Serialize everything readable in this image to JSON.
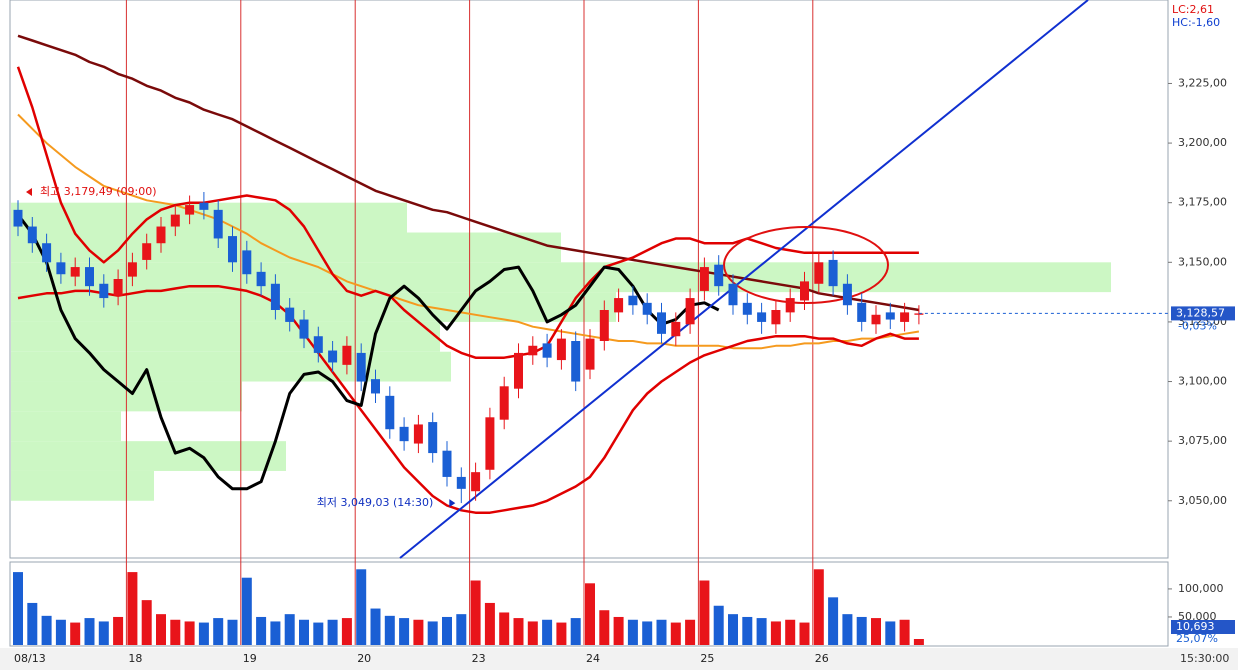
{
  "chart_data": {
    "type": "candlestick",
    "lc_label": "LC:2,61",
    "hc_label": "HC:-1,60",
    "time_label": "15:30:00",
    "categories": [
      "08/13",
      null,
      null,
      null,
      null,
      null,
      null,
      null,
      "18",
      null,
      null,
      null,
      null,
      null,
      null,
      null,
      "19",
      null,
      null,
      null,
      null,
      null,
      null,
      null,
      "20",
      null,
      null,
      null,
      null,
      null,
      null,
      null,
      "23",
      null,
      null,
      null,
      null,
      null,
      null,
      null,
      "24",
      null,
      null,
      null,
      null,
      null,
      null,
      null,
      "25",
      null,
      null,
      null,
      null,
      null,
      null,
      null,
      "26",
      null,
      null,
      null,
      null,
      null,
      null,
      null
    ],
    "open": [
      3172,
      3165,
      3158,
      3150,
      3144,
      3148,
      3141,
      3136,
      3144,
      3151,
      3158,
      3165,
      3170,
      3175,
      3172,
      3161,
      3155,
      3146,
      3141,
      3131,
      3126,
      3119,
      3113,
      3107,
      3112,
      3101,
      3094,
      3081,
      3074,
      3083,
      3071,
      3060,
      3054,
      3063,
      3084,
      3097,
      3111,
      3116,
      3109,
      3117,
      3105,
      3117,
      3129,
      3136,
      3133,
      3129,
      3119,
      3124,
      3138,
      3149,
      3141,
      3133,
      3129,
      3124,
      3129,
      3134,
      3141,
      3151,
      3141,
      3133,
      3124,
      3129,
      3125,
      3128
    ],
    "high": [
      3176,
      3169,
      3162,
      3154,
      3152,
      3152,
      3145,
      3147,
      3154,
      3162,
      3169,
      3174,
      3178,
      3179.49,
      3176,
      3165,
      3159,
      3150,
      3145,
      3135,
      3130,
      3123,
      3117,
      3119,
      3116,
      3105,
      3098,
      3085,
      3086,
      3087,
      3075,
      3064,
      3066,
      3089,
      3102,
      3116,
      3119,
      3120,
      3122,
      3121,
      3122,
      3134,
      3139,
      3140,
      3137,
      3133,
      3129,
      3139,
      3152,
      3153,
      3145,
      3137,
      3133,
      3134,
      3139,
      3146,
      3154,
      3155,
      3145,
      3137,
      3132,
      3133,
      3133,
      3132
    ],
    "low": [
      3161,
      3154,
      3146,
      3141,
      3140,
      3136,
      3131,
      3132,
      3140,
      3147,
      3154,
      3161,
      3166,
      3168,
      3156,
      3146,
      3141,
      3136,
      3126,
      3121,
      3114,
      3108,
      3104,
      3103,
      3096,
      3091,
      3076,
      3071,
      3070,
      3066,
      3056,
      3049.03,
      3050,
      3059,
      3080,
      3093,
      3107,
      3106,
      3105,
      3096,
      3101,
      3113,
      3125,
      3128,
      3124,
      3116,
      3115,
      3120,
      3134,
      3136,
      3128,
      3124,
      3120,
      3120,
      3125,
      3130,
      3137,
      3136,
      3128,
      3121,
      3120,
      3122,
      3121,
      3124
    ],
    "close": [
      3165,
      3158,
      3150,
      3145,
      3148,
      3140,
      3135,
      3143,
      3150,
      3158,
      3165,
      3170,
      3174,
      3172,
      3160,
      3150,
      3145,
      3140,
      3130,
      3125,
      3118,
      3112,
      3108,
      3115,
      3100,
      3095,
      3080,
      3075,
      3082,
      3070,
      3060,
      3055,
      3062,
      3085,
      3098,
      3112,
      3115,
      3110,
      3118,
      3100,
      3118,
      3130,
      3135,
      3132,
      3128,
      3120,
      3125,
      3135,
      3148,
      3140,
      3132,
      3128,
      3125,
      3130,
      3135,
      3142,
      3150,
      3140,
      3132,
      3125,
      3128,
      3126,
      3129,
      3128.57
    ],
    "up_color": "#e8141a",
    "down_color": "#1a5fd4",
    "ylim": [
      3026,
      3260
    ],
    "yticks": [
      {
        "value": 3050,
        "label": "3,050,00"
      },
      {
        "value": 3075,
        "label": "3,075,00"
      },
      {
        "value": 3100,
        "label": "3,100,00"
      },
      {
        "value": 3125,
        "label": "3,125,00"
      },
      {
        "value": 3150,
        "label": "3,150,00"
      },
      {
        "value": 3175,
        "label": "3,175,00"
      },
      {
        "value": 3200,
        "label": "3,200,00"
      },
      {
        "value": 3225,
        "label": "3,225,00"
      }
    ],
    "last_price": {
      "value": 3128.57,
      "label": "3,128,57"
    },
    "change_label": "-0,03%",
    "annotations": [
      {
        "text": "최고 3,179,49 (09:00)",
        "color": "#e01010"
      },
      {
        "text": "최저 3,049,03 (14:30)",
        "color": "#1030c0"
      }
    ],
    "series": [
      {
        "color": "#7a0a0a",
        "width": 2.5,
        "values": [
          3245,
          3243,
          3241,
          3239,
          3237,
          3234,
          3232,
          3229,
          3227,
          3224,
          3222,
          3219,
          3217,
          3214,
          3212,
          3210,
          3207,
          3204,
          3201,
          3198,
          3195,
          3192,
          3189,
          3186,
          3183,
          3180,
          3178,
          3176,
          3174,
          3172,
          3171,
          3169,
          3167,
          3165,
          3163,
          3161,
          3159,
          3157,
          3156,
          3155,
          3154,
          3153,
          3152,
          3151,
          3150,
          3149,
          3148,
          3147,
          3146,
          3145,
          3144,
          3143,
          3142,
          3141,
          3140,
          3139,
          3137,
          3136,
          3135,
          3134,
          3133,
          3132,
          3131,
          3130
        ]
      },
      {
        "color": "#f59a1e",
        "width": 2,
        "values": [
          3212,
          3206,
          3200,
          3195,
          3190,
          3186,
          3182,
          3180,
          3178,
          3176,
          3175,
          3174,
          3172,
          3170,
          3168,
          3165,
          3162,
          3158,
          3155,
          3152,
          3150,
          3148,
          3145,
          3142,
          3140,
          3138,
          3136,
          3134,
          3132,
          3131,
          3130,
          3129,
          3128,
          3127,
          3126,
          3125,
          3123,
          3122,
          3121,
          3120,
          3119,
          3118,
          3117,
          3117,
          3116,
          3116,
          3115,
          3115,
          3115,
          3115,
          3114,
          3114,
          3114,
          3115,
          3115,
          3116,
          3116,
          3117,
          3117,
          3118,
          3118,
          3119,
          3120,
          3121
        ]
      },
      {
        "color": "#e00000",
        "width": 2.5,
        "values": [
          3232,
          3215,
          3195,
          3175,
          3162,
          3155,
          3150,
          3155,
          3162,
          3168,
          3172,
          3174,
          3175,
          3175,
          3176,
          3177,
          3178,
          3177,
          3176,
          3172,
          3165,
          3155,
          3145,
          3138,
          3136,
          3138,
          3136,
          3130,
          3125,
          3120,
          3115,
          3112,
          3110,
          3110,
          3110,
          3111,
          3112,
          3115,
          3125,
          3135,
          3142,
          3148,
          3150,
          3152,
          3155,
          3158,
          3160,
          3160,
          3158,
          3158,
          3158,
          3160,
          3158,
          3156,
          3155,
          3154,
          3154,
          3154,
          3154,
          3154,
          3154,
          3154,
          3154,
          3154
        ]
      },
      {
        "color": "#e00000",
        "width": 2.5,
        "values": [
          3135,
          3136,
          3137,
          3137,
          3138,
          3138,
          3137,
          3136,
          3137,
          3138,
          3138,
          3139,
          3140,
          3140,
          3140,
          3139,
          3138,
          3136,
          3133,
          3128,
          3120,
          3112,
          3104,
          3096,
          3088,
          3080,
          3072,
          3064,
          3058,
          3052,
          3048,
          3046,
          3045,
          3045,
          3046,
          3047,
          3048,
          3050,
          3053,
          3056,
          3060,
          3068,
          3078,
          3088,
          3095,
          3100,
          3104,
          3108,
          3111,
          3113,
          3115,
          3117,
          3118,
          3119,
          3119,
          3119,
          3118,
          3118,
          3116,
          3115,
          3118,
          3120,
          3118,
          3118
        ]
      },
      {
        "color": "#000000",
        "width": 3,
        "values": [
          3170,
          3162,
          3150,
          3130,
          3118,
          3112,
          3105,
          3100,
          3095,
          3105,
          3085,
          3070,
          3072,
          3068,
          3060,
          3055,
          3055,
          3058,
          3075,
          3095,
          3103,
          3104,
          3100,
          3092,
          3090,
          3120,
          3135,
          3140,
          3135,
          3128,
          3122,
          3130,
          3138,
          3142,
          3147,
          3148,
          3138,
          3125,
          3128,
          3132,
          3140,
          3148,
          3147,
          3140,
          3130,
          3124,
          3126,
          3132,
          3133,
          3130,
          null,
          null,
          null,
          null,
          null,
          null,
          null,
          null,
          null,
          null,
          null,
          null,
          null,
          null
        ]
      }
    ],
    "volume_profile": {
      "color": "#ccf7c4",
      "bins": [
        3050,
        3062.5,
        3075,
        3087.5,
        3100,
        3112.5,
        3125,
        3137.5,
        3150,
        3162.5,
        3175
      ],
      "values": [
        13,
        25,
        10,
        21,
        40,
        39,
        55,
        100,
        50,
        36
      ]
    },
    "volume": {
      "values": [
        130000,
        75000,
        52000,
        45000,
        40000,
        48000,
        42000,
        50000,
        130000,
        80000,
        55000,
        45000,
        42000,
        40000,
        48000,
        45000,
        120000,
        50000,
        42000,
        55000,
        45000,
        40000,
        45000,
        48000,
        135000,
        65000,
        52000,
        48000,
        45000,
        42000,
        50000,
        55000,
        115000,
        75000,
        58000,
        48000,
        42000,
        45000,
        40000,
        48000,
        110000,
        62000,
        50000,
        45000,
        42000,
        45000,
        40000,
        45000,
        115000,
        70000,
        55000,
        50000,
        48000,
        42000,
        45000,
        40000,
        135000,
        85000,
        55000,
        50000,
        48000,
        42000,
        45000,
        10693
      ],
      "value_labels_last": "10,693",
      "ratio_label": "25,07%",
      "ylim": [
        0,
        148000
      ],
      "yticks": [
        {
          "value": 50000,
          "label": "50,000"
        },
        {
          "value": 100000,
          "label": "100,000"
        }
      ]
    }
  }
}
